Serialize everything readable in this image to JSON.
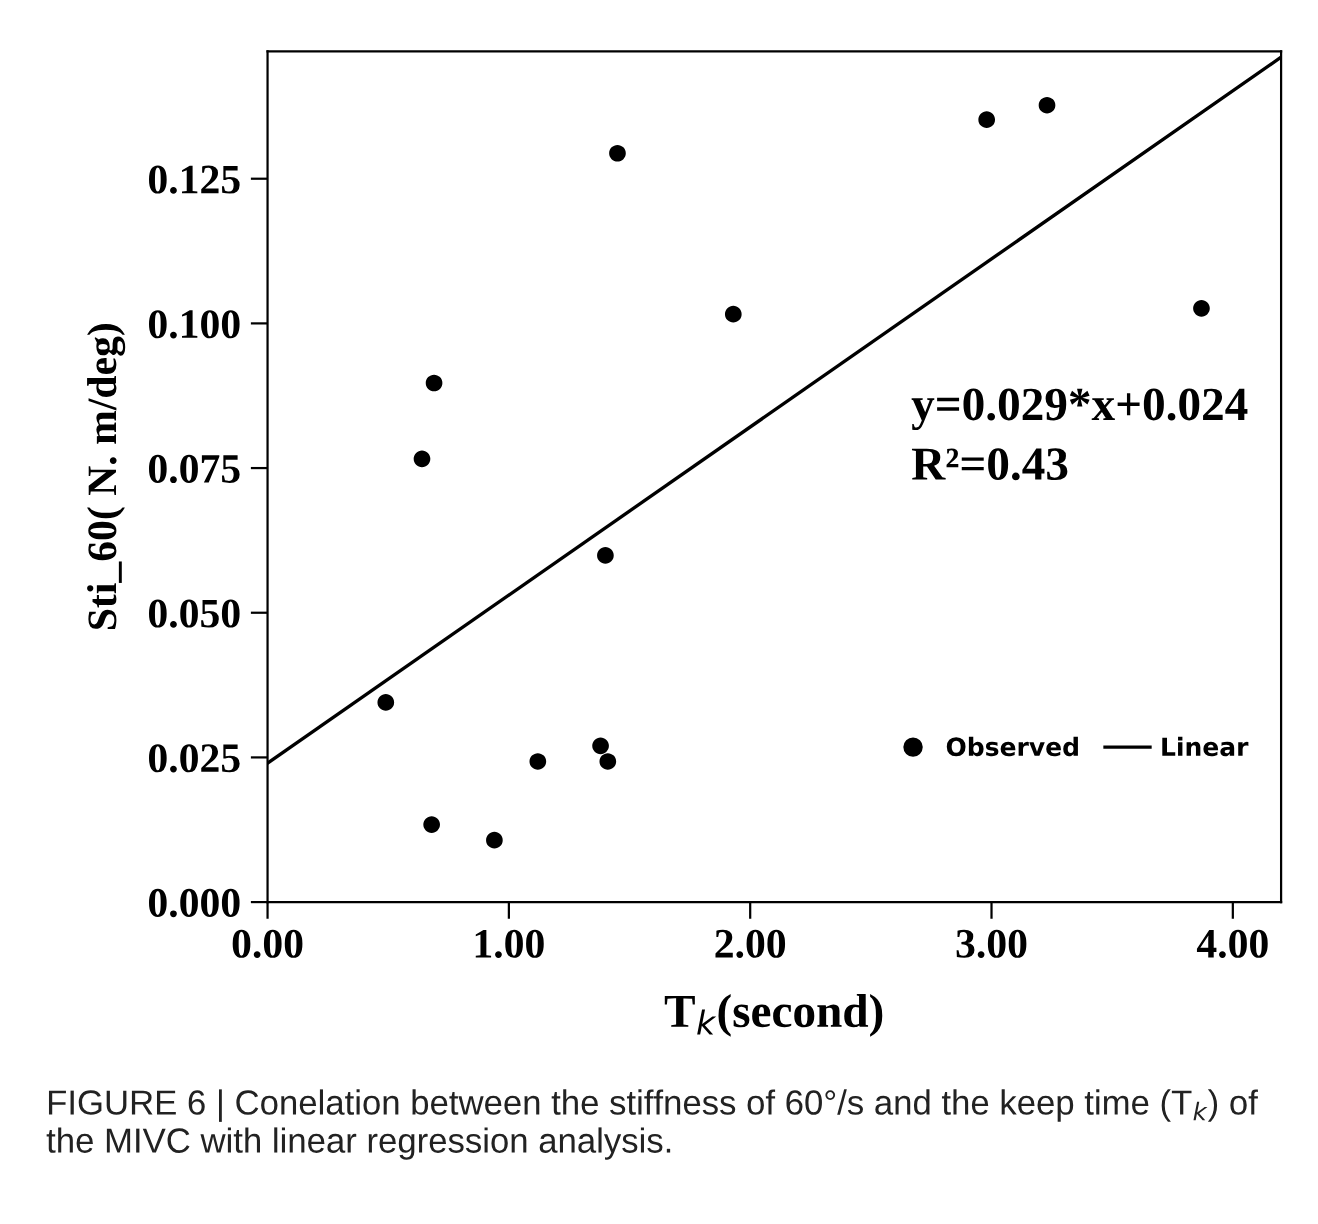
{
  "chart_data": {
    "type": "scatter",
    "xlabel": "T$_{k}$(second)",
    "ylabel": "Sti_60( N. m/deg)",
    "annotations": [
      "y=0.029*x+0.024",
      "R²=0.43",
      "FIGURE 6 | Conelation between the stiffness of 60°/s and the keep time (T$_{k}$) of the MIVC with linear regression analysis."
    ],
    "series": [
      {
        "name": "Observed",
        "color": "#000000",
        "marker": "circle",
        "x": [
          0.49,
          0.64,
          0.69,
          0.68,
          0.94,
          1.12,
          1.38,
          1.41,
          1.4,
          1.45,
          1.93,
          2.98,
          3.23,
          3.87
        ],
        "values": [
          0.0345,
          0.0766,
          0.0897,
          0.0134,
          0.0107,
          0.0243,
          0.027,
          0.0243,
          0.0599,
          0.1294,
          0.1016,
          0.1352,
          0.1377,
          0.1026
        ]
      },
      {
        "name": "Linear",
        "type": "line",
        "color": "#000000",
        "line_style": "solid",
        "x": [
          0,
          4.2
        ],
        "values": [
          0.024,
          0.146
        ]
      }
    ],
    "xlim": [
      0,
      4.2
    ],
    "ylim": [
      0,
      0.147
    ],
    "xticks": [
      {
        "value": 0,
        "label": "0.00"
      },
      {
        "value": 1,
        "label": "1.00"
      },
      {
        "value": 2,
        "label": "2.00"
      },
      {
        "value": 3,
        "label": "3.00"
      },
      {
        "value": 4,
        "label": "4.00"
      }
    ],
    "yticks": [
      {
        "value": 0,
        "label": "0.000"
      },
      {
        "value": 0.025,
        "label": "0.025"
      },
      {
        "value": 0.05,
        "label": "0.050"
      },
      {
        "value": 0.075,
        "label": "0.075"
      },
      {
        "value": 0.1,
        "label": "0.100"
      },
      {
        "value": 0.125,
        "label": "0.125"
      }
    ],
    "grid": false,
    "legend": "right"
  }
}
